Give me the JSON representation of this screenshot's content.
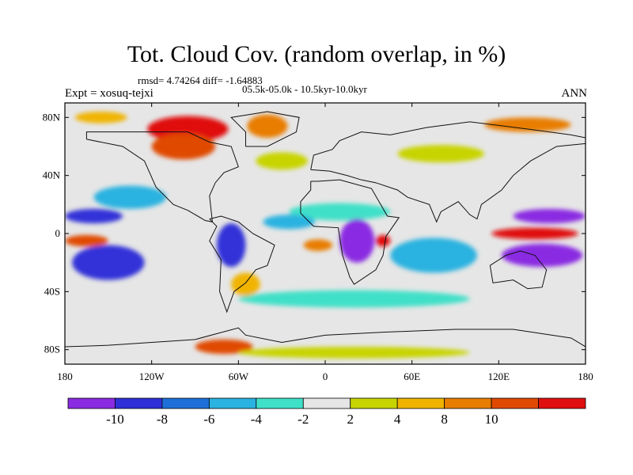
{
  "header": {
    "title": "Tot. Cloud Cov. (random overlap, in %)",
    "stats": "rmsd= 4.74264 diff= -1.64883",
    "experiment": "Expt = xosuq-tejxi",
    "period": "05.5k-05.0k - 10.5kyr-10.0kyr",
    "season": "ANN"
  },
  "axes": {
    "x_ticks": [
      {
        "value": -180,
        "label": "180"
      },
      {
        "value": -120,
        "label": "120W"
      },
      {
        "value": -60,
        "label": "60W"
      },
      {
        "value": 0,
        "label": "0"
      },
      {
        "value": 60,
        "label": "60E"
      },
      {
        "value": 120,
        "label": "120E"
      },
      {
        "value": 180,
        "label": "180"
      }
    ],
    "y_ticks": [
      {
        "value": 80,
        "label": "80N"
      },
      {
        "value": 40,
        "label": "40N"
      },
      {
        "value": 0,
        "label": "0"
      },
      {
        "value": -40,
        "label": "40S"
      },
      {
        "value": -80,
        "label": "80S"
      }
    ],
    "lon_range": [
      -180,
      180
    ],
    "lat_range": [
      -90,
      90
    ]
  },
  "colorbar": {
    "colors": [
      "#8a2be2",
      "#3030d8",
      "#1f6fd8",
      "#2ab2e0",
      "#3fe0c8",
      "#e6e6e6",
      "#c8d400",
      "#f0b400",
      "#e87d00",
      "#e04a00",
      "#e01010"
    ],
    "labels": [
      "-10",
      "-8",
      "-6",
      "-4",
      "-2",
      "2",
      "4",
      "8",
      "10"
    ]
  },
  "chart_data": {
    "type": "heatmap",
    "title": "Tot. Cloud Cov. (random overlap, in %)",
    "projection": "cylindrical-equidistant",
    "levels": [
      -10,
      -8,
      -6,
      -4,
      -2,
      2,
      4,
      8,
      10
    ],
    "background_color": "#e6e6e6",
    "features": [
      {
        "desc": "north-america-arctic",
        "lon": -95,
        "lat": 72,
        "rx": 28,
        "ry": 9,
        "level_index": 10
      },
      {
        "desc": "canada",
        "lon": -98,
        "lat": 60,
        "rx": 22,
        "ry": 9,
        "level_index": 9
      },
      {
        "desc": "greenland",
        "lon": -40,
        "lat": 74,
        "rx": 14,
        "ry": 8,
        "level_index": 8
      },
      {
        "desc": "north-pacific",
        "lon": -155,
        "lat": 80,
        "rx": 18,
        "ry": 4,
        "level_index": 7
      },
      {
        "desc": "n-atlantic",
        "lon": -30,
        "lat": 50,
        "rx": 18,
        "ry": 6,
        "level_index": 6
      },
      {
        "desc": "siberia",
        "lon": 140,
        "lat": 75,
        "rx": 30,
        "ry": 5,
        "level_index": 8
      },
      {
        "desc": "eurasia",
        "lon": 80,
        "lat": 55,
        "rx": 30,
        "ry": 6,
        "level_index": 6
      },
      {
        "desc": "pacific-itcz-e",
        "lon": -160,
        "lat": 12,
        "rx": 20,
        "ry": 5,
        "level_index": 1
      },
      {
        "desc": "east-pacific",
        "lon": -135,
        "lat": 25,
        "rx": 25,
        "ry": 8,
        "level_index": 3
      },
      {
        "desc": "amazon",
        "lon": -65,
        "lat": -8,
        "rx": 10,
        "ry": 15,
        "level_index": 1
      },
      {
        "desc": "sahel",
        "lon": 10,
        "lat": 15,
        "rx": 35,
        "ry": 6,
        "level_index": 4
      },
      {
        "desc": "atlantic-itcz",
        "lon": -25,
        "lat": 8,
        "rx": 18,
        "ry": 5,
        "level_index": 3
      },
      {
        "desc": "congo",
        "lon": 22,
        "lat": -5,
        "rx": 12,
        "ry": 15,
        "level_index": 0
      },
      {
        "desc": "east-africa",
        "lon": 40,
        "lat": -5,
        "rx": 5,
        "ry": 4,
        "level_index": 10
      },
      {
        "desc": "south-atlantic",
        "lon": -5,
        "lat": -8,
        "rx": 10,
        "ry": 4,
        "level_index": 8
      },
      {
        "desc": "indian-ocean",
        "lon": 75,
        "lat": -15,
        "rx": 30,
        "ry": 12,
        "level_index": 3
      },
      {
        "desc": "maritime-continent",
        "lon": 150,
        "lat": -15,
        "rx": 28,
        "ry": 8,
        "level_index": 0
      },
      {
        "desc": "w-pacific-north",
        "lon": 155,
        "lat": 12,
        "rx": 25,
        "ry": 5,
        "level_index": 0
      },
      {
        "desc": "w-pacific-eq",
        "lon": 145,
        "lat": 0,
        "rx": 30,
        "ry": 4,
        "level_index": 10
      },
      {
        "desc": "s-pacific",
        "lon": -150,
        "lat": -20,
        "rx": 25,
        "ry": 12,
        "level_index": 1
      },
      {
        "desc": "s-pacific-warm",
        "lon": -165,
        "lat": -5,
        "rx": 15,
        "ry": 4,
        "level_index": 9
      },
      {
        "desc": "southern-ocean",
        "lon": 20,
        "lat": -45,
        "rx": 80,
        "ry": 6,
        "level_index": 4
      },
      {
        "desc": "s-america-south",
        "lon": -55,
        "lat": -35,
        "rx": 10,
        "ry": 8,
        "level_index": 7
      },
      {
        "desc": "antarctica-w",
        "lon": -70,
        "lat": -78,
        "rx": 20,
        "ry": 5,
        "level_index": 9
      },
      {
        "desc": "antarctica",
        "lon": 20,
        "lat": -82,
        "rx": 80,
        "ry": 4,
        "level_index": 6
      }
    ]
  }
}
